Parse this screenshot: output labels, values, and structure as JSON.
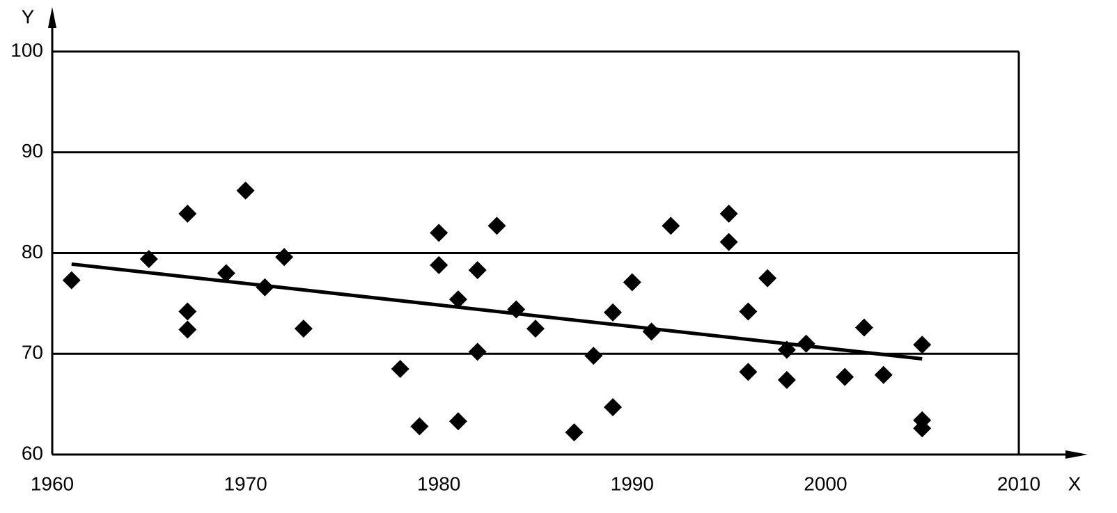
{
  "chart_data": {
    "type": "scatter",
    "x_label": "X",
    "y_label": "Y",
    "xlim": [
      1960,
      2010
    ],
    "ylim": [
      60,
      100
    ],
    "xticks": [
      1960,
      1970,
      1980,
      1990,
      2000,
      2010
    ],
    "yticks": [
      60,
      70,
      80,
      90,
      100
    ],
    "grid": true,
    "color": "#000000",
    "x": [
      1961,
      1965,
      1967,
      1967,
      1967,
      1969,
      1970,
      1971,
      1972,
      1973,
      1978,
      1979,
      1980,
      1980,
      1981,
      1981,
      1982,
      1982,
      1983,
      1984,
      1985,
      1987,
      1988,
      1989,
      1989,
      1990,
      1991,
      1992,
      1995,
      1995,
      1996,
      1996,
      1997,
      1998,
      1998,
      1999,
      2001,
      2002,
      2003,
      2005,
      2005,
      2005
    ],
    "values": [
      77.3,
      79.4,
      83.9,
      74.2,
      72.4,
      78.0,
      86.2,
      76.6,
      79.6,
      72.5,
      68.5,
      62.8,
      82.0,
      78.8,
      75.4,
      63.3,
      78.3,
      70.2,
      82.7,
      74.4,
      72.5,
      62.2,
      69.8,
      74.1,
      64.7,
      77.1,
      72.2,
      82.7,
      83.9,
      81.1,
      74.2,
      68.2,
      77.5,
      70.4,
      67.4,
      71.0,
      67.7,
      72.6,
      67.9,
      70.9,
      63.4,
      62.6
    ],
    "trend_x": [
      1961,
      2005
    ],
    "trend_values": [
      78.9,
      69.5
    ]
  }
}
